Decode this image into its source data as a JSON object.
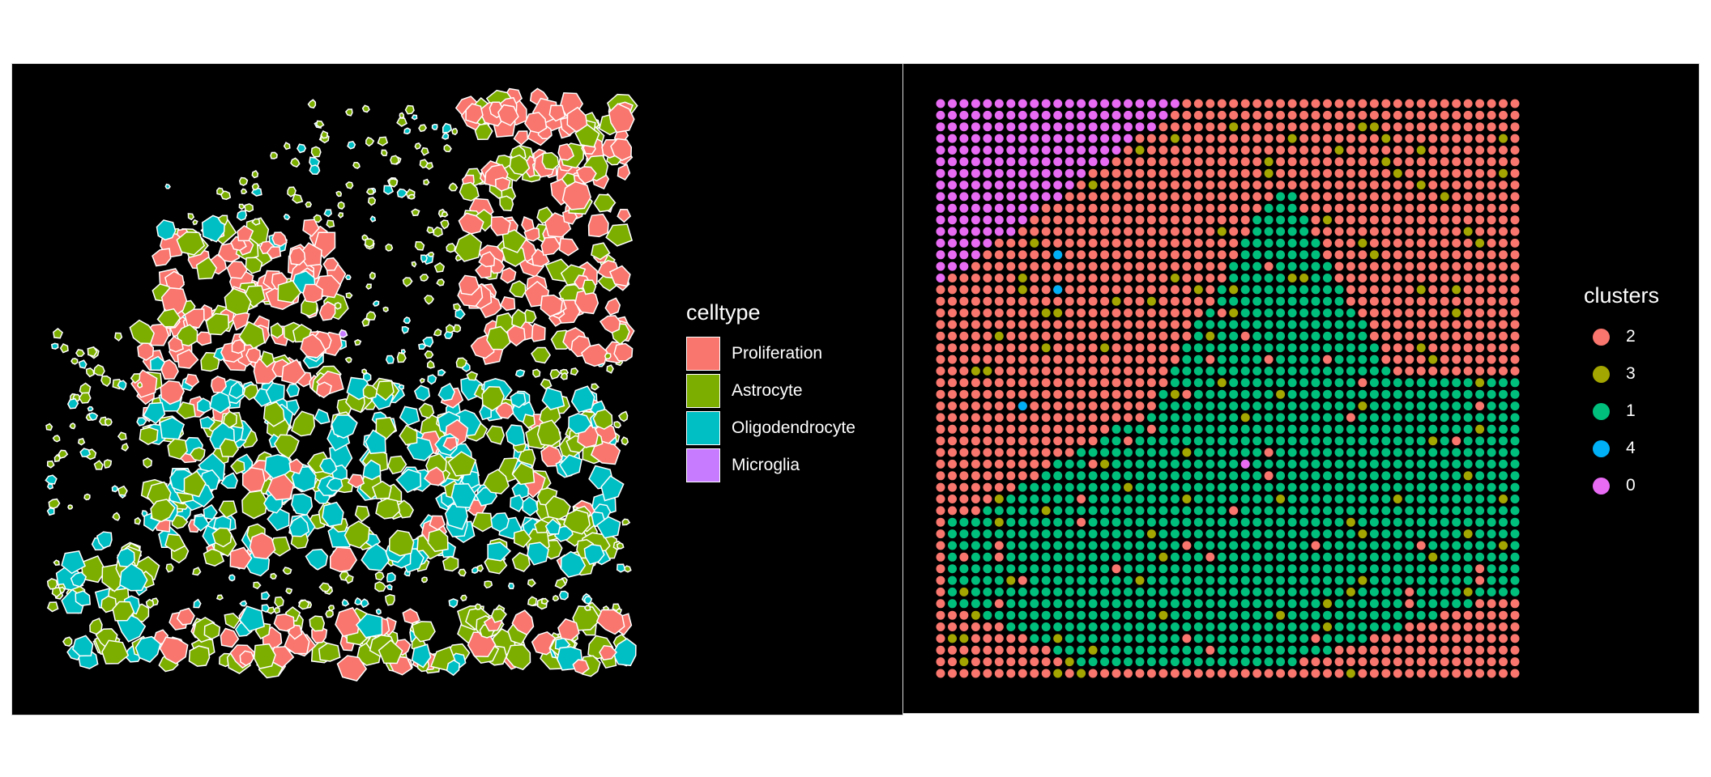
{
  "chart_data": [
    {
      "type": "scatter",
      "title": "",
      "xlabel": "",
      "ylabel": "",
      "grid": false,
      "legend_position": "right",
      "legend": {
        "title": "celltype",
        "entries": [
          {
            "label": "Proliferation",
            "color": "#F8766D"
          },
          {
            "label": "Astrocyte",
            "color": "#7CAE00"
          },
          {
            "label": "Oligodendrocyte",
            "color": "#00BFC4"
          },
          {
            "label": "Microglia",
            "color": "#C77CFF"
          }
        ]
      },
      "cell_outline_color": "#ffffff",
      "background": "#000000",
      "note_type": "segmented cell polygons colored by cell type (spatial map, no axes)"
    },
    {
      "type": "scatter",
      "title": "",
      "xlabel": "",
      "ylabel": "",
      "grid": false,
      "legend_position": "right",
      "legend": {
        "title": "clusters",
        "entries": [
          {
            "label": "2",
            "color": "#F8766D"
          },
          {
            "label": "3",
            "color": "#A3A500"
          },
          {
            "label": "1",
            "color": "#00BF7D"
          },
          {
            "label": "4",
            "color": "#00B0F6"
          },
          {
            "label": "0",
            "color": "#E76BF3"
          }
        ]
      },
      "background": "#000000",
      "grid_spots": {
        "columns": 50,
        "rows": 50
      }
    }
  ]
}
